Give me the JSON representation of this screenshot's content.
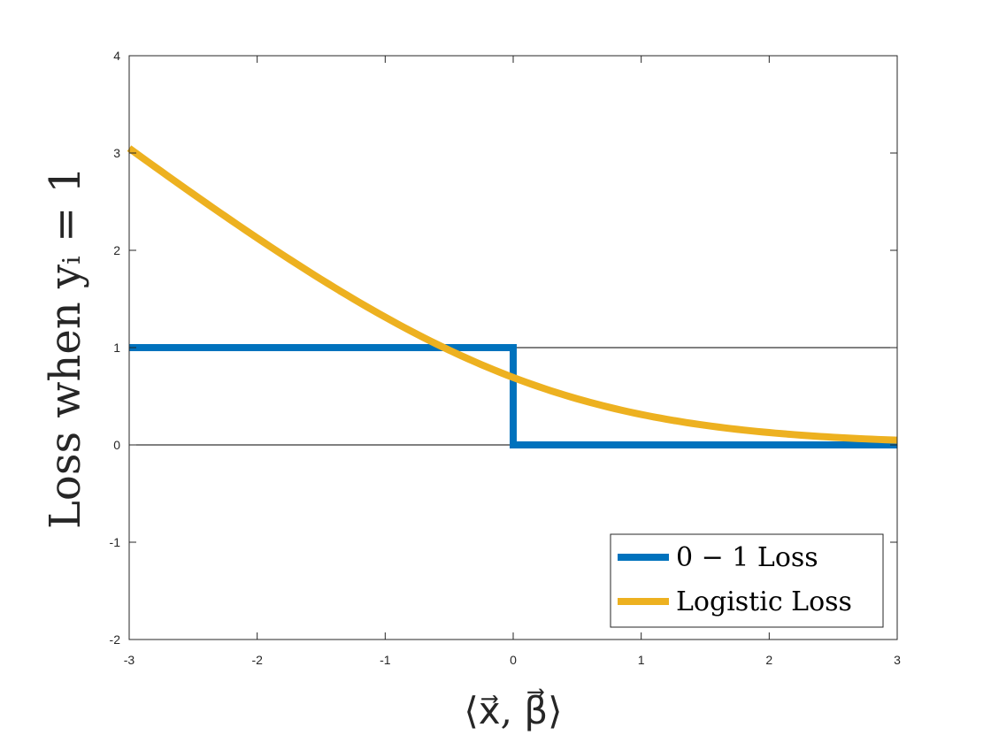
{
  "chart_data": {
    "type": "line",
    "title": "",
    "xlabel": "⟨x⃗, β⃗⟩",
    "ylabel": "Loss when yᵢ = 1",
    "xlim": [
      -3,
      3
    ],
    "ylim": [
      -2,
      4
    ],
    "x_ticks": [
      "-3",
      "-2",
      "-1",
      "0",
      "1",
      "2",
      "3"
    ],
    "y_ticks": [
      "-2",
      "-1",
      "0",
      "1",
      "2",
      "3",
      "4"
    ],
    "grid": false,
    "reference_lines_y": [
      0,
      1
    ],
    "legend": {
      "placement": "bottom-right"
    },
    "series": [
      {
        "name": "0 − 1 Loss",
        "color": "#0072BD",
        "x": [
          -3,
          0,
          0,
          3
        ],
        "y": [
          1,
          1,
          0,
          0
        ]
      },
      {
        "name": "Logistic Loss",
        "color": "#EDB120",
        "x": [
          -3,
          -2.5,
          -2,
          -1.5,
          -1,
          -0.5,
          0,
          0.5,
          1,
          1.5,
          2,
          2.5,
          3
        ],
        "y": [
          3.05,
          2.58,
          2.13,
          1.7,
          1.31,
          0.97,
          0.69,
          0.47,
          0.31,
          0.2,
          0.13,
          0.08,
          0.05
        ]
      }
    ]
  }
}
